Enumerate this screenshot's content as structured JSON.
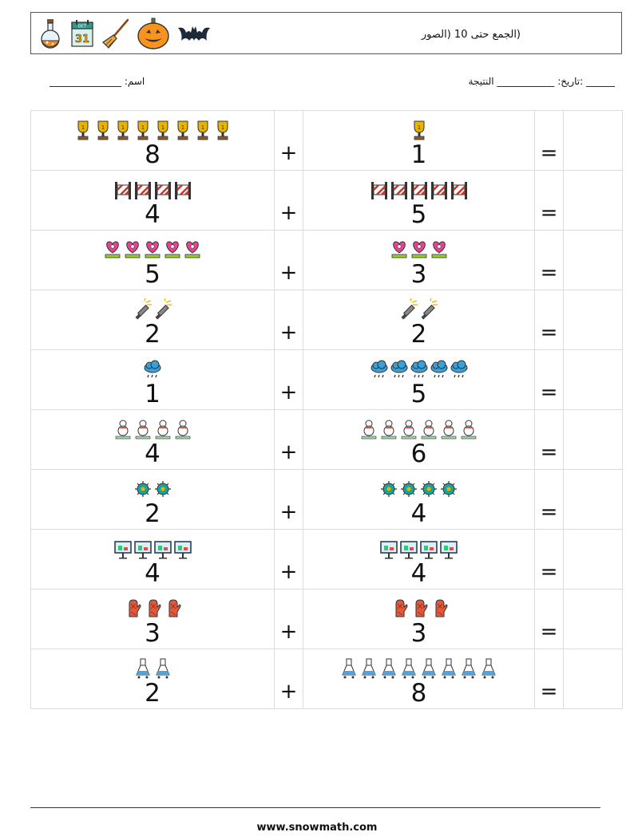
{
  "header": {
    "title": "(الجمع حتى 10 (الصور",
    "icons": [
      "potion-icon",
      "calendar-icon",
      "broom-icon",
      "pumpkin-icon",
      "bat-icon"
    ],
    "calendar_month": "OCT",
    "calendar_day": "31"
  },
  "meta": {
    "name_label": "اسم: _______________",
    "date_result_label": "______ :تاريخ: ____________ النتيجة"
  },
  "problems": [
    {
      "a": "8",
      "b": "1",
      "op": "+",
      "eq": "=",
      "icon": "trophy-icon",
      "color": "#e8b400"
    },
    {
      "a": "4",
      "b": "5",
      "op": "+",
      "eq": "=",
      "icon": "barrier-icon",
      "color": "#c0392b"
    },
    {
      "a": "5",
      "b": "3",
      "op": "+",
      "eq": "=",
      "icon": "heart-flower-icon",
      "color": "#e84393"
    },
    {
      "a": "2",
      "b": "2",
      "op": "+",
      "eq": "=",
      "icon": "flashlight-icon",
      "color": "#666666"
    },
    {
      "a": "1",
      "b": "5",
      "op": "+",
      "eq": "=",
      "icon": "rain-cloud-icon",
      "color": "#3aa0d8"
    },
    {
      "a": "4",
      "b": "6",
      "op": "+",
      "eq": "=",
      "icon": "snowman-icon",
      "color": "#2e8b57"
    },
    {
      "a": "2",
      "b": "4",
      "op": "+",
      "eq": "=",
      "icon": "virus-icon",
      "color": "#1aa39a"
    },
    {
      "a": "4",
      "b": "4",
      "op": "+",
      "eq": "=",
      "icon": "billboard-icon",
      "color": "#2c3e50"
    },
    {
      "a": "3",
      "b": "3",
      "op": "+",
      "eq": "=",
      "icon": "mitten-icon",
      "color": "#e05a3a"
    },
    {
      "a": "2",
      "b": "8",
      "op": "+",
      "eq": "=",
      "icon": "flask-icon",
      "color": "#4fa3e0"
    }
  ],
  "footer": {
    "url": "www.snowmath.com"
  }
}
